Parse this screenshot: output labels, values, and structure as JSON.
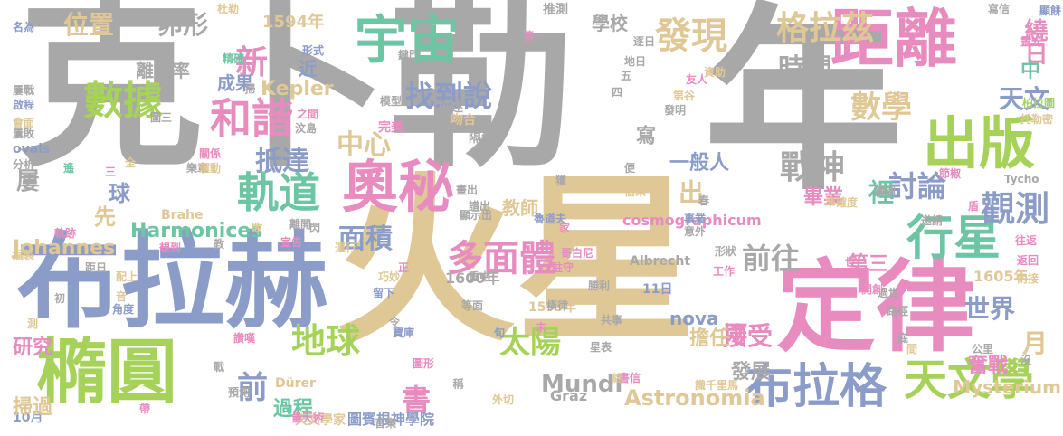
{
  "words": [
    {
      "text": "克卜勒",
      "color": "#a8a8a8"
    },
    {
      "text": "年",
      "color": "#a8a8a8"
    },
    {
      "text": "火星",
      "color": "#e0c896"
    },
    {
      "text": "布拉赫",
      "color": "#8b9cc8"
    },
    {
      "text": "定律",
      "color": "#e88cc0"
    },
    {
      "text": "橢圓",
      "color": "#a6d25a"
    },
    {
      "text": "距離",
      "color": "#e88cc0"
    },
    {
      "text": "出版",
      "color": "#a6d25a"
    },
    {
      "text": "宇宙",
      "color": "#6cc6a4"
    },
    {
      "text": "奧秘",
      "color": "#e88cc0"
    },
    {
      "text": "行星",
      "color": "#6cc6a4"
    },
    {
      "text": "布拉格",
      "color": "#8b9cc8"
    },
    {
      "text": "天文學",
      "color": "#a6d25a"
    },
    {
      "text": "軌道",
      "color": "#6cc6a4"
    },
    {
      "text": "數據",
      "color": "#a6d25a"
    },
    {
      "text": "和諧",
      "color": "#e88cc0"
    },
    {
      "text": "發現",
      "color": "#e0c896"
    },
    {
      "text": "格拉茲",
      "color": "#e0c896"
    },
    {
      "text": "多面體",
      "color": "#e88cc0"
    },
    {
      "text": "地球",
      "color": "#a6d25a"
    },
    {
      "text": "觀測",
      "color": "#8b9cc8"
    },
    {
      "text": "新",
      "color": "#e88cc0"
    },
    {
      "text": "卵形",
      "color": "#a8a8a8"
    },
    {
      "text": "位置",
      "color": "#e0c896"
    },
    {
      "text": "找到說",
      "color": "#8b9cc8"
    },
    {
      "text": "戰神",
      "color": "#a8a8a8"
    },
    {
      "text": "數學",
      "color": "#e0c896"
    },
    {
      "text": "時間",
      "color": "#a8a8a8"
    },
    {
      "text": "天文",
      "color": "#8b9cc8"
    },
    {
      "text": "中心",
      "color": "#e0c896"
    },
    {
      "text": "抵達",
      "color": "#8b9cc8"
    },
    {
      "text": "討論",
      "color": "#8b9cc8"
    },
    {
      "text": "前往",
      "color": "#a8a8a8"
    },
    {
      "text": "面積",
      "color": "#8b9cc8"
    },
    {
      "text": "太陽",
      "color": "#a6d25a"
    },
    {
      "text": "接受",
      "color": "#e88cc0"
    },
    {
      "text": "前",
      "color": "#8b9cc8"
    },
    {
      "text": "書",
      "color": "#e88cc0"
    },
    {
      "text": "世界",
      "color": "#8b9cc8"
    },
    {
      "text": "Mundi",
      "color": "#a8a8a8"
    },
    {
      "text": "Astronomia",
      "color": "#e0c896"
    },
    {
      "text": "Harmonices",
      "color": "#6cc6a4"
    },
    {
      "text": "Johannes",
      "color": "#e0c896"
    },
    {
      "text": "Kepler",
      "color": "#e0c896"
    },
    {
      "text": "Mysterium",
      "color": "#e0c896"
    },
    {
      "text": "cosmographicum",
      "color": "#e88cc0"
    },
    {
      "text": "nova",
      "color": "#8b9cc8"
    },
    {
      "text": "Graz",
      "color": "#a8a8a8"
    },
    {
      "text": "Brahe",
      "color": "#e0c896"
    },
    {
      "text": "Tycho",
      "color": "#a8a8a8"
    },
    {
      "text": "Albrecht",
      "color": "#a8a8a8"
    },
    {
      "text": "Dürer",
      "color": "#e0c896"
    },
    {
      "text": "ovals",
      "color": "#8b9cc8"
    },
    {
      "text": "離心率",
      "color": "#a8a8a8"
    },
    {
      "text": "成果",
      "color": "#8b9cc8"
    },
    {
      "text": "近",
      "color": "#8b9cc8"
    },
    {
      "text": "1594年",
      "color": "#e0c896"
    },
    {
      "text": "1600年",
      "color": "#a8a8a8"
    },
    {
      "text": "1599年",
      "color": "#e0c896"
    },
    {
      "text": "1605年",
      "color": "#e0c896"
    },
    {
      "text": "11日",
      "color": "#8b9cc8"
    },
    {
      "text": "10月",
      "color": "#8b9cc8"
    },
    {
      "text": "繞日",
      "color": "#e88cc0"
    },
    {
      "text": "中",
      "color": "#6cc6a4"
    },
    {
      "text": "裡",
      "color": "#6cc6a4"
    },
    {
      "text": "月",
      "color": "#e0c896"
    },
    {
      "text": "兩",
      "color": "#e88cc0"
    },
    {
      "text": "出",
      "color": "#e0c896"
    },
    {
      "text": "第三",
      "color": "#e88cc0"
    },
    {
      "text": "畢業",
      "color": "#e88cc0"
    },
    {
      "text": "一般人",
      "color": "#8b9cc8"
    },
    {
      "text": "教師",
      "color": "#e0c896"
    },
    {
      "text": "寫",
      "color": "#a8a8a8"
    },
    {
      "text": "擔任",
      "color": "#e0c896"
    },
    {
      "text": "發展",
      "color": "#a8a8a8"
    },
    {
      "text": "奮戰",
      "color": "#e88cc0"
    },
    {
      "text": "過程",
      "color": "#6cc6a4"
    },
    {
      "text": "研究",
      "color": "#e88cc0"
    },
    {
      "text": "掃過",
      "color": "#e0c896"
    },
    {
      "text": "球",
      "color": "#8b9cc8"
    },
    {
      "text": "先",
      "color": "#e0c896"
    },
    {
      "text": "屢",
      "color": "#a8a8a8"
    },
    {
      "text": "圖賓根神學院",
      "color": "#8b9cc8"
    },
    {
      "text": "天文學家",
      "color": "#e0c896"
    },
    {
      "text": "推測",
      "color": "#a8a8a8"
    },
    {
      "text": "學校",
      "color": "#a8a8a8"
    },
    {
      "text": "名為",
      "color": "#8b9cc8"
    },
    {
      "text": "杜勒",
      "color": "#e0c896"
    },
    {
      "text": "形式",
      "color": "#8b9cc8"
    },
    {
      "text": "精確",
      "color": "#6cc6a4"
    },
    {
      "text": "鍵門",
      "color": "#a8a8a8"
    },
    {
      "text": "第一",
      "color": "#e88cc0"
    },
    {
      "text": "逐日",
      "color": "#a8a8a8"
    },
    {
      "text": "寫信",
      "color": "#a8a8a8"
    },
    {
      "text": "靈光",
      "color": "#e88cc0"
    },
    {
      "text": "資助",
      "color": "#e0c896"
    },
    {
      "text": "友人",
      "color": "#e88cc0"
    },
    {
      "text": "第谷",
      "color": "#e0c896"
    },
    {
      "text": "柏拉圖",
      "color": "#a6d25a"
    },
    {
      "text": "托勒密",
      "color": "#e0c896"
    },
    {
      "text": "吻合",
      "color": "#e0c896"
    },
    {
      "text": "隔年",
      "color": "#a8a8a8"
    },
    {
      "text": "描述",
      "color": "#a8a8a8"
    },
    {
      "text": "模型",
      "color": "#a8a8a8"
    },
    {
      "text": "完美",
      "color": "#e88cc0"
    },
    {
      "text": "關係",
      "color": "#e88cc0"
    },
    {
      "text": "樂章",
      "color": "#a8a8a8"
    },
    {
      "text": "運動",
      "color": "#e0c896"
    },
    {
      "text": "節椒",
      "color": "#e88cc0"
    },
    {
      "text": "讀到",
      "color": "#a8a8a8"
    },
    {
      "text": "伯樂",
      "color": "#e0c896"
    },
    {
      "text": "準確度",
      "color": "#e0c896"
    },
    {
      "text": "邀請",
      "color": "#a8a8a8"
    },
    {
      "text": "往返",
      "color": "#e88cc0"
    },
    {
      "text": "返回",
      "color": "#e88cc0"
    },
    {
      "text": "內接",
      "color": "#e0c896"
    },
    {
      "text": "開創",
      "color": "#e88cc0"
    },
    {
      "text": "工作",
      "color": "#e88cc0"
    },
    {
      "text": "形狀",
      "color": "#a8a8a8"
    },
    {
      "text": "事業",
      "color": "#8b9cc8"
    },
    {
      "text": "意外",
      "color": "#a8a8a8"
    },
    {
      "text": "魯道夫",
      "color": "#8b9cc8"
    },
    {
      "text": "駐守",
      "color": "#e88cc0"
    },
    {
      "text": "哥白尼",
      "color": "#e88cc0"
    },
    {
      "text": "勝利",
      "color": "#a8a8a8"
    },
    {
      "text": "橫律",
      "color": "#a8a8a8"
    },
    {
      "text": "共事",
      "color": "#a8a8a8"
    },
    {
      "text": "星表",
      "color": "#a8a8a8"
    },
    {
      "text": "寶庫",
      "color": "#8b9cc8"
    },
    {
      "text": "書信",
      "color": "#e88cc0"
    },
    {
      "text": "終",
      "color": "#e0c896"
    },
    {
      "text": "識千里馬",
      "color": "#e0c896"
    },
    {
      "text": "外切",
      "color": "#e0c896"
    },
    {
      "text": "音樂",
      "color": "#a8a8a8"
    },
    {
      "text": "量天術",
      "color": "#e88cc0"
    },
    {
      "text": "圖形",
      "color": "#e88cc0"
    },
    {
      "text": "稱",
      "color": "#a8a8a8"
    },
    {
      "text": "預測",
      "color": "#a8a8a8"
    },
    {
      "text": "讚嘆",
      "color": "#e88cc0"
    },
    {
      "text": "宣告",
      "color": "#e88cc0"
    },
    {
      "text": "運行",
      "color": "#e0c896"
    },
    {
      "text": "離開",
      "color": "#a8a8a8"
    },
    {
      "text": "巧妙",
      "color": "#e0c896"
    },
    {
      "text": "留下",
      "color": "#8b9cc8"
    },
    {
      "text": "重中",
      "color": "#a8a8a8"
    },
    {
      "text": "等面",
      "color": "#a8a8a8"
    },
    {
      "text": "想到",
      "color": "#e88cc0"
    },
    {
      "text": "配上",
      "color": "#e0c896"
    },
    {
      "text": "距日",
      "color": "#a8a8a8"
    },
    {
      "text": "角度",
      "color": "#8b9cc8"
    },
    {
      "text": "軌跡",
      "color": "#e88cc0"
    },
    {
      "text": "編製",
      "color": "#e0c896"
    },
    {
      "text": "分析",
      "color": "#a8a8a8"
    },
    {
      "text": "遙",
      "color": "#6cc6a4"
    },
    {
      "text": "屢戰",
      "color": "#a8a8a8"
    },
    {
      "text": "啟程",
      "color": "#8b9cc8"
    },
    {
      "text": "會面",
      "color": "#e0c896"
    },
    {
      "text": "屢敗",
      "color": "#a8a8a8"
    },
    {
      "text": "汶島",
      "color": "#a8a8a8"
    },
    {
      "text": "之間",
      "color": "#e88cc0"
    },
    {
      "text": "圖三",
      "color": "#a8a8a8"
    },
    {
      "text": "掃",
      "color": "#a8a8a8"
    },
    {
      "text": "畫出",
      "color": "#a8a8a8"
    },
    {
      "text": "顯示出",
      "color": "#a8a8a8"
    },
    {
      "text": "譜出",
      "color": "#a8a8a8"
    },
    {
      "text": "地日",
      "color": "#a8a8a8"
    },
    {
      "text": "獲",
      "color": "#a8a8a8"
    },
    {
      "text": "四",
      "color": "#a8a8a8"
    },
    {
      "text": "五",
      "color": "#a8a8a8"
    },
    {
      "text": "發明",
      "color": "#a8a8a8"
    },
    {
      "text": "便",
      "color": "#a8a8a8"
    },
    {
      "text": "春",
      "color": "#a8a8a8"
    },
    {
      "text": "家",
      "color": "#e88cc0"
    },
    {
      "text": "世",
      "color": "#e88cc0"
    },
    {
      "text": "過世",
      "color": "#a8a8a8"
    },
    {
      "text": "路徑",
      "color": "#a8a8a8"
    },
    {
      "text": "底",
      "color": "#a8a8a8"
    },
    {
      "text": "間",
      "color": "#e0c896"
    },
    {
      "text": "公里",
      "color": "#a8a8a8"
    },
    {
      "text": "沒",
      "color": "#a8a8a8"
    },
    {
      "text": "顯餅",
      "color": "#8b9cc8"
    },
    {
      "text": "令",
      "color": "#a8a8a8"
    },
    {
      "text": "未",
      "color": "#e88cc0"
    },
    {
      "text": "旬",
      "color": "#8b9cc8"
    },
    {
      "text": "敗",
      "color": "#e0c896"
    },
    {
      "text": "閃",
      "color": "#a8a8a8"
    },
    {
      "text": "教",
      "color": "#a8a8a8"
    },
    {
      "text": "正",
      "color": "#e88cc0"
    },
    {
      "text": "音",
      "color": "#e0c896"
    },
    {
      "text": "初",
      "color": "#a8a8a8"
    },
    {
      "text": "測",
      "color": "#e0c896"
    },
    {
      "text": "帶",
      "color": "#e88cc0"
    },
    {
      "text": "戰",
      "color": "#a8a8a8"
    },
    {
      "text": "三",
      "color": "#e88cc0"
    },
    {
      "text": "全",
      "color": "#e0c896"
    },
    {
      "text": "盾",
      "color": "#e88cc0"
    }
  ]
}
